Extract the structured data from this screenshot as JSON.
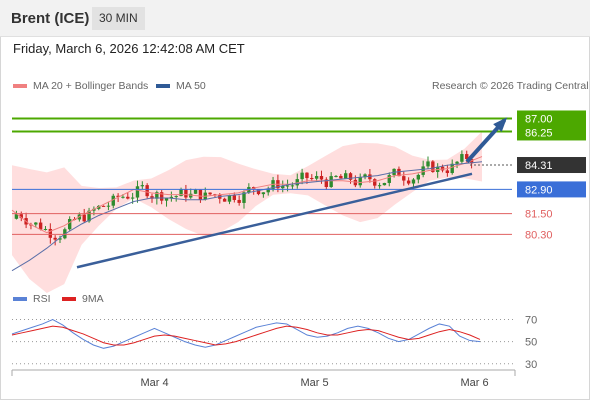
{
  "header": {
    "instrument": "Brent (ICE)",
    "timeframe": "30 MIN"
  },
  "datetime": "Friday, March 6, 2026 12:42:08 AM CET",
  "legend": {
    "ma20_bb": "MA 20 + Bollinger Bands",
    "ma50": "MA 50",
    "copyright": "Research © 2026 Trading Central"
  },
  "rsi_legend": {
    "rsi": "RSI",
    "ma": "9MA"
  },
  "colors": {
    "resistance": "#4ca800",
    "pivot": "#3a6fd8",
    "support": "#e06060",
    "last": "#333333",
    "candle_up": "#2e8b2e",
    "candle_down": "#cc2222",
    "bollinger": "#ffd3d3",
    "trendline": "#3a5f9a",
    "rsi": "#5a82d6",
    "rsi_ma": "#dd2222"
  },
  "chart_data": [
    {
      "type": "candlestick",
      "title": "Brent (ICE)",
      "ylim": [
        77.2,
        88.3
      ],
      "x_tick_labels": [
        "Mar 4",
        "Mar 5",
        "Mar 6"
      ],
      "levels": [
        {
          "value": 87.0,
          "label": "87.00",
          "kind": "resistance"
        },
        {
          "value": 86.25,
          "label": "86.25",
          "kind": "resistance"
        },
        {
          "value": 84.31,
          "label": "84.31",
          "kind": "last"
        },
        {
          "value": 82.9,
          "label": "82.90",
          "kind": "pivot"
        },
        {
          "value": 81.5,
          "label": "81.50",
          "kind": "support"
        },
        {
          "value": 80.3,
          "label": "80.30",
          "kind": "support"
        }
      ],
      "trendline": [
        [
          0.13,
          78.4
        ],
        [
          0.92,
          83.8
        ]
      ],
      "arrow": {
        "from": [
          0.91,
          84.5
        ],
        "to": [
          0.985,
          86.9
        ]
      },
      "series": [
        {
          "name": "MA 20 + Bollinger Bands",
          "values": [
            81.7,
            80.9,
            80.4,
            80.8,
            81.4,
            81.9,
            82.4,
            82.9,
            82.7,
            82.6,
            82.6,
            82.5,
            82.6,
            82.7,
            83.0,
            83.2,
            83.2,
            83.4,
            83.4,
            83.4,
            83.3,
            83.4,
            83.7,
            83.8,
            84.0,
            84.1,
            84.4,
            84.8
          ]
        },
        {
          "name": "MA 50",
          "values": [
            78.2,
            78.8,
            79.5,
            80.3,
            80.9,
            81.4,
            81.8,
            82.2,
            82.4,
            82.4,
            82.3,
            82.3,
            82.5,
            82.6,
            82.8,
            83.0,
            83.2,
            83.3,
            83.4,
            83.5,
            83.6,
            83.7,
            83.9,
            84.0,
            84.1,
            84.3,
            84.4,
            84.5
          ]
        }
      ]
    },
    {
      "type": "line",
      "title": "RSI",
      "ylim": [
        28,
        75
      ],
      "y_ticks": [
        70,
        50,
        30
      ],
      "series": [
        {
          "name": "RSI",
          "values": [
            57,
            60,
            63,
            66,
            70,
            65,
            58,
            52,
            47,
            44,
            46,
            50,
            54,
            58,
            62,
            58,
            54,
            50,
            47,
            45,
            47,
            51,
            55,
            59,
            63,
            65,
            67,
            66,
            61,
            56,
            54,
            55,
            58,
            62,
            64,
            62,
            58,
            53,
            50,
            52,
            57,
            62,
            66,
            64,
            55,
            51,
            50
          ]
        },
        {
          "name": "9MA",
          "values": [
            56,
            58,
            60,
            62,
            64,
            63,
            60,
            57,
            53,
            49,
            47,
            47,
            49,
            52,
            55,
            56,
            55,
            53,
            51,
            49,
            47,
            48,
            50,
            53,
            56,
            59,
            62,
            64,
            63,
            61,
            58,
            56,
            56,
            58,
            60,
            61,
            60,
            57,
            54,
            52,
            53,
            56,
            59,
            61,
            59,
            56,
            52
          ]
        }
      ]
    }
  ]
}
